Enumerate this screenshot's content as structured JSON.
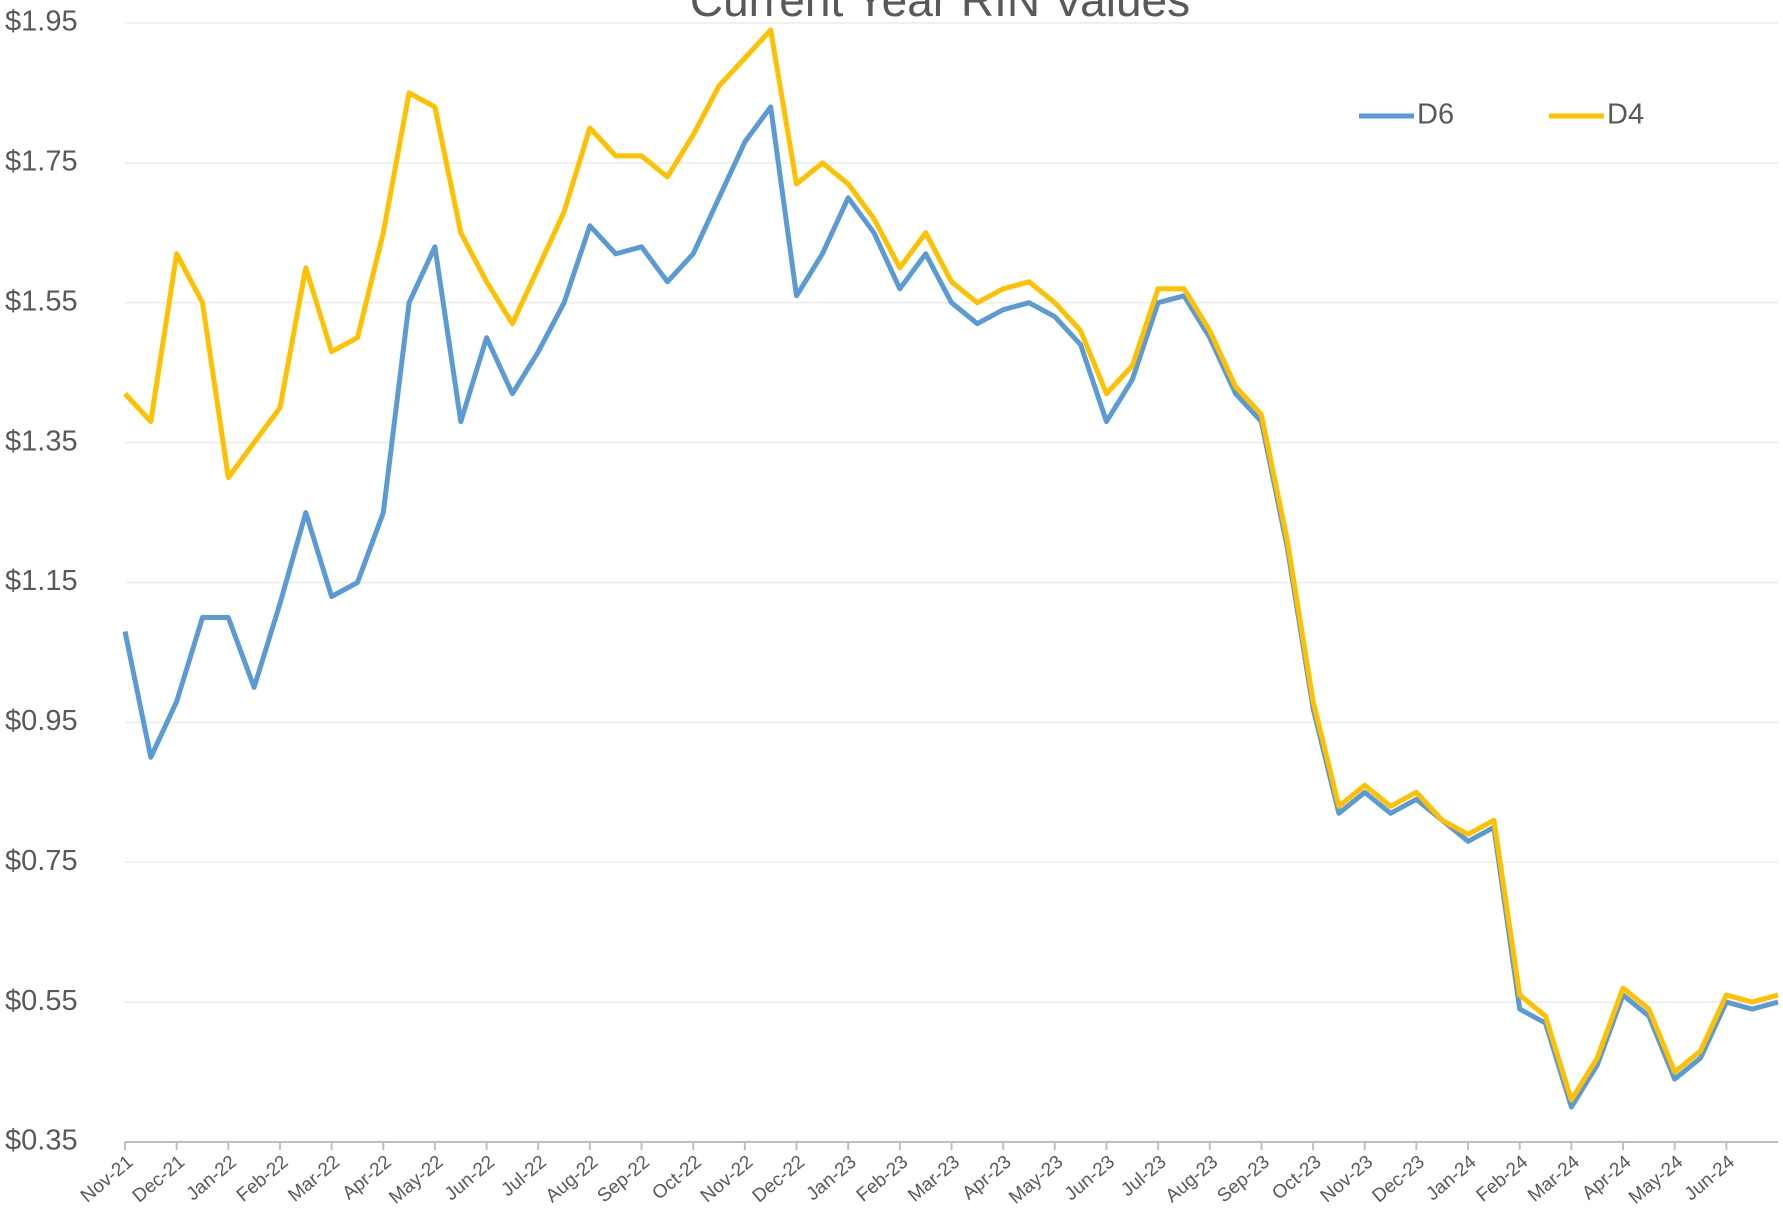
{
  "chart_data": {
    "type": "line",
    "title": "Current Year RIN Values",
    "categories": [
      "Nov-21",
      null,
      "Dec-21",
      null,
      "Jan-22",
      null,
      "Feb-22",
      null,
      "Mar-22",
      null,
      "Apr-22",
      null,
      "May-22",
      null,
      "Jun-22",
      null,
      "Jul-22",
      null,
      "Aug-22",
      null,
      "Sep-22",
      null,
      "Oct-22",
      null,
      "Nov-22",
      null,
      "Dec-22",
      null,
      "Jan-23",
      null,
      "Feb-23",
      null,
      "Mar-23",
      null,
      "Apr-23",
      null,
      "May-23",
      null,
      "Jun-23",
      null,
      "Jul-23",
      null,
      "Aug-23",
      null,
      "Sep-23",
      null,
      "Oct-23",
      null,
      "Nov-23",
      null,
      "Dec-23",
      null,
      "Jan-24",
      null,
      "Feb-24",
      null,
      "Mar-24",
      null,
      "Apr-24",
      null,
      "May-24",
      null,
      "Jun-24",
      null,
      null
    ],
    "series": [
      {
        "name": "D6",
        "color": "#5b9bd5",
        "values": [
          1.08,
          0.9,
          0.98,
          1.1,
          1.1,
          1.0,
          1.12,
          1.25,
          1.13,
          1.15,
          1.25,
          1.55,
          1.63,
          1.38,
          1.5,
          1.42,
          1.48,
          1.55,
          1.66,
          1.62,
          1.63,
          1.58,
          1.62,
          1.7,
          1.78,
          1.83,
          1.56,
          1.62,
          1.7,
          1.65,
          1.57,
          1.62,
          1.55,
          1.52,
          1.54,
          1.55,
          1.53,
          1.49,
          1.38,
          1.44,
          1.55,
          1.56,
          1.5,
          1.42,
          1.38,
          1.2,
          0.97,
          0.82,
          0.85,
          0.82,
          0.84,
          0.81,
          0.78,
          0.8,
          0.54,
          0.52,
          0.4,
          0.46,
          0.56,
          0.53,
          0.44,
          0.47,
          0.55,
          0.54,
          0.55
        ]
      },
      {
        "name": "D4",
        "color": "#ffc000",
        "values": [
          1.42,
          1.38,
          1.62,
          1.55,
          1.3,
          1.35,
          1.4,
          1.6,
          1.48,
          1.5,
          1.65,
          1.85,
          1.83,
          1.65,
          1.58,
          1.52,
          1.6,
          1.68,
          1.8,
          1.76,
          1.76,
          1.73,
          1.79,
          1.86,
          1.9,
          1.94,
          1.72,
          1.75,
          1.72,
          1.67,
          1.6,
          1.65,
          1.58,
          1.55,
          1.57,
          1.58,
          1.55,
          1.51,
          1.42,
          1.46,
          1.57,
          1.57,
          1.51,
          1.43,
          1.39,
          1.21,
          0.98,
          0.83,
          0.86,
          0.83,
          0.85,
          0.81,
          0.79,
          0.81,
          0.56,
          0.53,
          0.41,
          0.47,
          0.57,
          0.54,
          0.45,
          0.48,
          0.56,
          0.55,
          0.56
        ]
      }
    ],
    "ylim": [
      0.35,
      1.95
    ],
    "yticks": [
      {
        "value": 0.35,
        "label": "$0.35"
      },
      {
        "value": 0.55,
        "label": "$0.55"
      },
      {
        "value": 0.75,
        "label": "$0.75"
      },
      {
        "value": 0.95,
        "label": "$0.95"
      },
      {
        "value": 1.15,
        "label": "$1.15"
      },
      {
        "value": 1.35,
        "label": "$1.35"
      },
      {
        "value": 1.55,
        "label": "$1.55"
      },
      {
        "value": 1.75,
        "label": "$1.75"
      },
      {
        "value": 1.95,
        "label": "$1.95"
      }
    ],
    "grid": true,
    "legend": "top-right"
  }
}
